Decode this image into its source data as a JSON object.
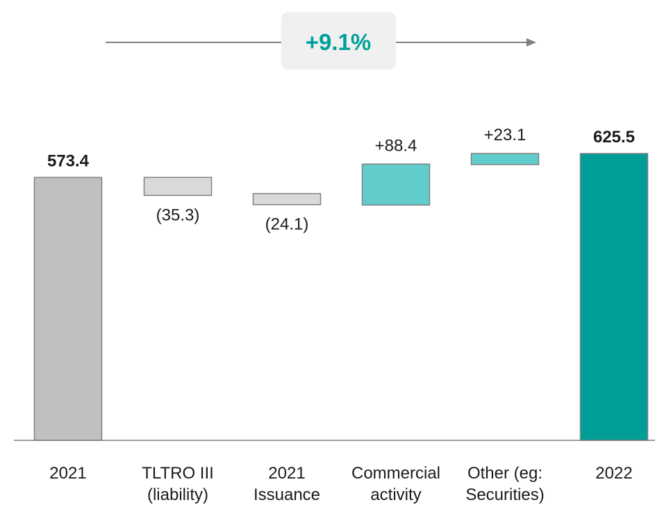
{
  "chart_data": {
    "type": "bar",
    "subtype": "waterfall",
    "categories": [
      "2021",
      "TLTRO III\n(liability)",
      "2021\nIssuance",
      "Commercial\nactivity",
      "Other (eg:\nSecurities)",
      "2022"
    ],
    "values": [
      573.4,
      -35.3,
      -24.1,
      88.4,
      23.1,
      625.5
    ],
    "value_labels": [
      "573.4",
      "(35.3)",
      "(24.1)",
      "+88.4",
      "+23.1",
      "625.5"
    ],
    "bar_kinds": [
      "total",
      "delta",
      "delta",
      "delta",
      "delta",
      "total"
    ],
    "growth_label": "+9.1%",
    "ylim": [
      0,
      625.5
    ],
    "colors": {
      "start_total": "#c0c0c0",
      "negative": "#d9d9d9",
      "positive": "#60cccc",
      "end_total": "#009e96",
      "growth_text": "#00a09a",
      "outline": "#808080",
      "axis": "#7f7f7f"
    }
  }
}
